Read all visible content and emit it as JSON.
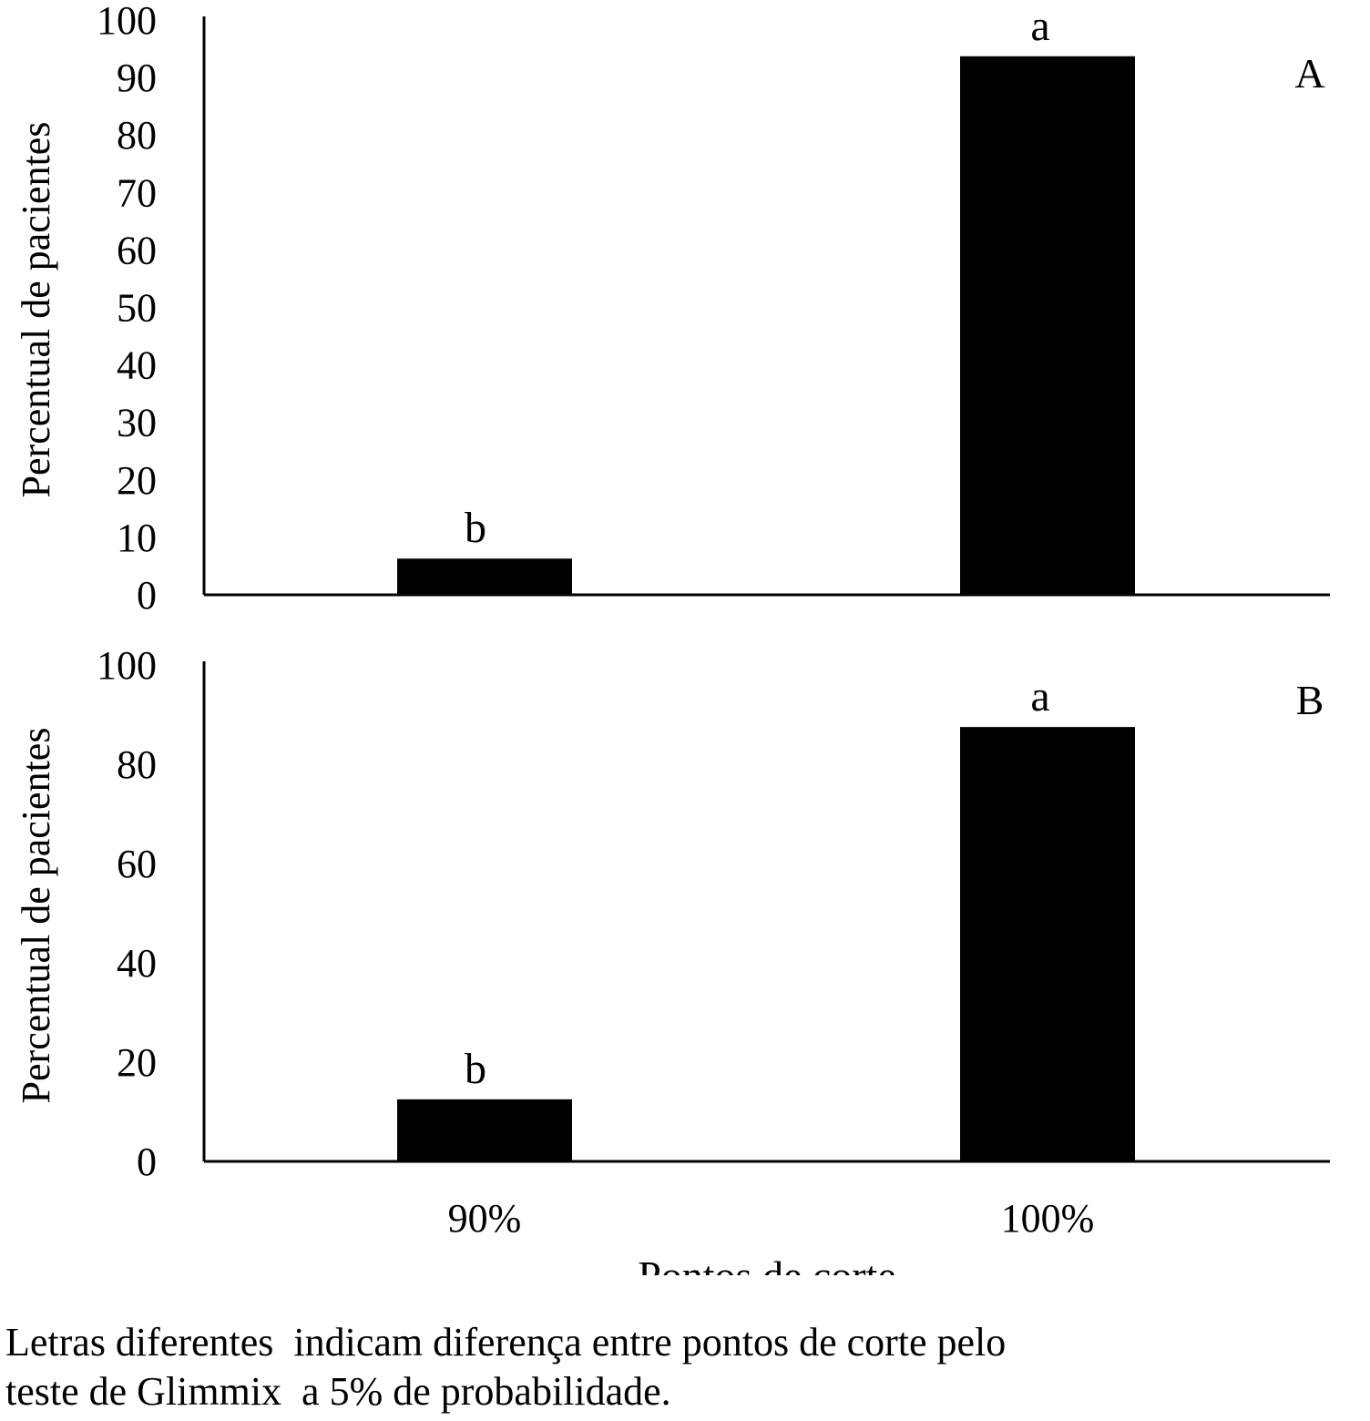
{
  "chart_data": [
    {
      "type": "bar",
      "panel_label": "A",
      "categories": [
        "90%",
        "100%"
      ],
      "values": [
        6.3,
        93.7
      ],
      "bar_labels": [
        "b",
        "a"
      ],
      "ylabel": "Percentual de pacientes",
      "ylim": [
        0,
        100
      ],
      "yticks": [
        0,
        10,
        20,
        30,
        40,
        50,
        60,
        70,
        80,
        90,
        100
      ],
      "bar_color": "#000000",
      "grid": false
    },
    {
      "type": "bar",
      "panel_label": "B",
      "categories": [
        "90%",
        "100%"
      ],
      "values": [
        12.5,
        87.5
      ],
      "bar_labels": [
        "b",
        "a"
      ],
      "ylabel": "Percentual de pacientes",
      "ylim": [
        0,
        100
      ],
      "yticks": [
        0,
        20,
        40,
        60,
        80,
        100
      ],
      "bar_color": "#000000",
      "grid": false
    }
  ],
  "xlabel": "Pontos de corte",
  "x_tick_labels": [
    "90%",
    "100%"
  ],
  "footnote": {
    "line1": "Letras diferentes  indicam diferença entre pontos de corte pelo",
    "line2": "teste de Glimmix  a 5% de probabilidade."
  }
}
